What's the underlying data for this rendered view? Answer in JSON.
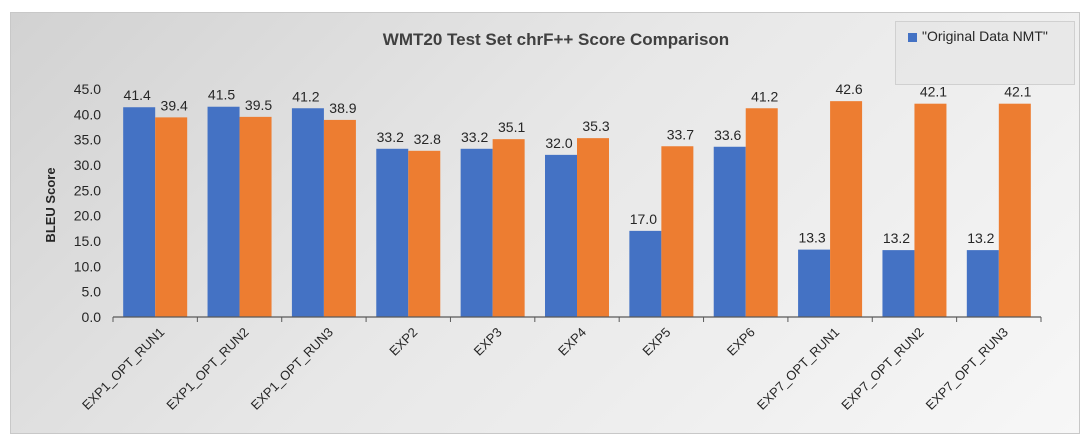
{
  "chart_data": {
    "type": "bar",
    "title": "WMT20 Test Set chrF++ Score Comparison",
    "ylabel": "BLEU Score",
    "xlabel": "",
    "ylim": [
      0,
      45
    ],
    "yticks": [
      "0.0",
      "5.0",
      "10.0",
      "15.0",
      "20.0",
      "25.0",
      "30.0",
      "35.0",
      "40.0",
      "45.0"
    ],
    "grid": false,
    "legend_position": "top-right",
    "categories": [
      "EXP1_OPT_RUN1",
      "EXP1_OPT_RUN2",
      "EXP1_OPT_RUN3",
      "EXP2",
      "EXP3",
      "EXP4",
      "EXP5",
      "EXP6",
      "EXP7_OPT_RUN1",
      "EXP7_OPT_RUN2",
      "EXP7_OPT_RUN3"
    ],
    "series": [
      {
        "name": "\"Original Data NMT\"",
        "color": "#4472C4",
        "values": [
          41.4,
          41.5,
          41.2,
          33.2,
          33.2,
          32.0,
          17.0,
          33.6,
          13.3,
          13.2,
          13.2
        ],
        "labels": [
          "41.4",
          "41.5",
          "41.2",
          "33.2",
          "33.2",
          "32.0",
          "17.0",
          "33.6",
          "13.3",
          "13.2",
          "13.2"
        ]
      },
      {
        "color": "#ED7D31",
        "values": [
          39.4,
          39.5,
          38.9,
          32.8,
          35.1,
          35.3,
          33.7,
          41.2,
          42.6,
          42.1,
          42.1
        ],
        "labels": [
          "39.4",
          "39.5",
          "38.9",
          "32.8",
          "35.1",
          "35.3",
          "33.7",
          "41.2",
          "42.6",
          "42.1",
          "42.1"
        ]
      }
    ]
  }
}
